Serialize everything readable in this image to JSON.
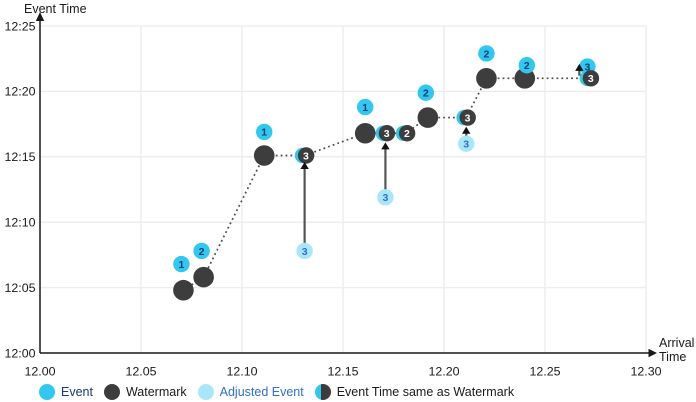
{
  "chart_data": {
    "type": "scatter",
    "y_axis_title": "Event Time",
    "x_axis_title_lines": [
      "Arrival",
      "Time"
    ],
    "x_range": [
      12.0,
      12.3
    ],
    "y_range_minutes": [
      0,
      25
    ],
    "grid": true,
    "x_ticks": [
      {
        "label": "12.00",
        "v": 12.0
      },
      {
        "label": "12.05",
        "v": 12.05
      },
      {
        "label": "12.10",
        "v": 12.1
      },
      {
        "label": "12.15",
        "v": 12.15
      },
      {
        "label": "12.20",
        "v": 12.2
      },
      {
        "label": "12.25",
        "v": 12.25
      },
      {
        "label": "12.30",
        "v": 12.3
      }
    ],
    "y_ticks": [
      {
        "label": "12:00",
        "m": 0
      },
      {
        "label": "12:05",
        "m": 5
      },
      {
        "label": "12:10",
        "m": 10
      },
      {
        "label": "12:15",
        "m": 15
      },
      {
        "label": "12:20",
        "m": 20
      },
      {
        "label": "12:25",
        "m": 25
      }
    ],
    "events": [
      {
        "label": "1",
        "arrival": 12.07,
        "event_minutes": 6.8
      },
      {
        "label": "2",
        "arrival": 12.08,
        "event_minutes": 7.8
      },
      {
        "label": "1",
        "arrival": 12.111,
        "event_minutes": 16.9
      },
      {
        "label": "1",
        "arrival": 12.161,
        "event_minutes": 18.8
      },
      {
        "label": "2",
        "arrival": 12.191,
        "event_minutes": 19.9
      },
      {
        "label": "2",
        "arrival": 12.221,
        "event_minutes": 22.9
      },
      {
        "label": "2",
        "arrival": 12.241,
        "event_minutes": 22.0
      },
      {
        "label": "3",
        "arrival": 12.271,
        "event_minutes": 21.9
      }
    ],
    "watermarks": [
      {
        "arrival": 12.071,
        "minutes": 4.8
      },
      {
        "arrival": 12.081,
        "minutes": 5.8
      },
      {
        "arrival": 12.111,
        "minutes": 15.1
      },
      {
        "arrival": 12.161,
        "minutes": 16.8
      },
      {
        "arrival": 12.192,
        "minutes": 18.0
      },
      {
        "arrival": 12.221,
        "minutes": 21.0
      },
      {
        "arrival": 12.24,
        "minutes": 21.0
      }
    ],
    "same_as_watermark": [
      {
        "label": "3",
        "arrival": 12.131,
        "minutes": 15.1
      },
      {
        "label": "3",
        "arrival": 12.171,
        "minutes": 16.8
      },
      {
        "label": "2",
        "arrival": 12.181,
        "minutes": 16.8
      },
      {
        "label": "3",
        "arrival": 12.211,
        "minutes": 18.0
      },
      {
        "label": "3",
        "arrival": 12.272,
        "minutes": 21.0
      }
    ],
    "adjusted_events": [
      {
        "label": "3",
        "arrival": 12.131,
        "minutes": 7.8
      },
      {
        "label": "3",
        "arrival": 12.171,
        "minutes": 11.9
      },
      {
        "label": "3",
        "arrival": 12.211,
        "minutes": 16.0
      }
    ],
    "adjust_arrows": [
      {
        "arrival": 12.131,
        "from_minutes": 8.4,
        "to_minutes": 14.6
      },
      {
        "arrival": 12.171,
        "from_minutes": 12.5,
        "to_minutes": 16.1
      },
      {
        "arrival": 12.211,
        "from_minutes": 16.6,
        "to_minutes": 17.3
      },
      {
        "arrival": 12.267,
        "from_minutes": 21.2,
        "to_minutes": 22.1
      }
    ],
    "legend": [
      {
        "id": "event",
        "icon": "event-icon",
        "label": "Event",
        "label_color": "#173A6B"
      },
      {
        "id": "watermark",
        "icon": "watermark-icon",
        "label": "Watermark",
        "label_color": "#1A1A1A"
      },
      {
        "id": "adjusted-event",
        "icon": "adjusted-event-icon",
        "label": "Adjusted Event",
        "label_color": "#2D6FD4"
      },
      {
        "id": "same-as-watermark",
        "icon": "event-same-as-watermark-icon",
        "label": "Event Time same as Watermark",
        "label_color": "#1A1A1A"
      }
    ],
    "colors": {
      "event": "#2EC8F0",
      "event_number": "#173A6B",
      "watermark": "#3D3D3D",
      "adjusted_event": "#A8E7F8",
      "adjusted_number": "#2D6FD4",
      "same_number": "#FFFFFF",
      "text": "#1A1A1A",
      "grid": "#ECECEC",
      "dotted_line": "#4B4B4B",
      "arrow": "#555555",
      "arrow_head": "#111111"
    }
  }
}
